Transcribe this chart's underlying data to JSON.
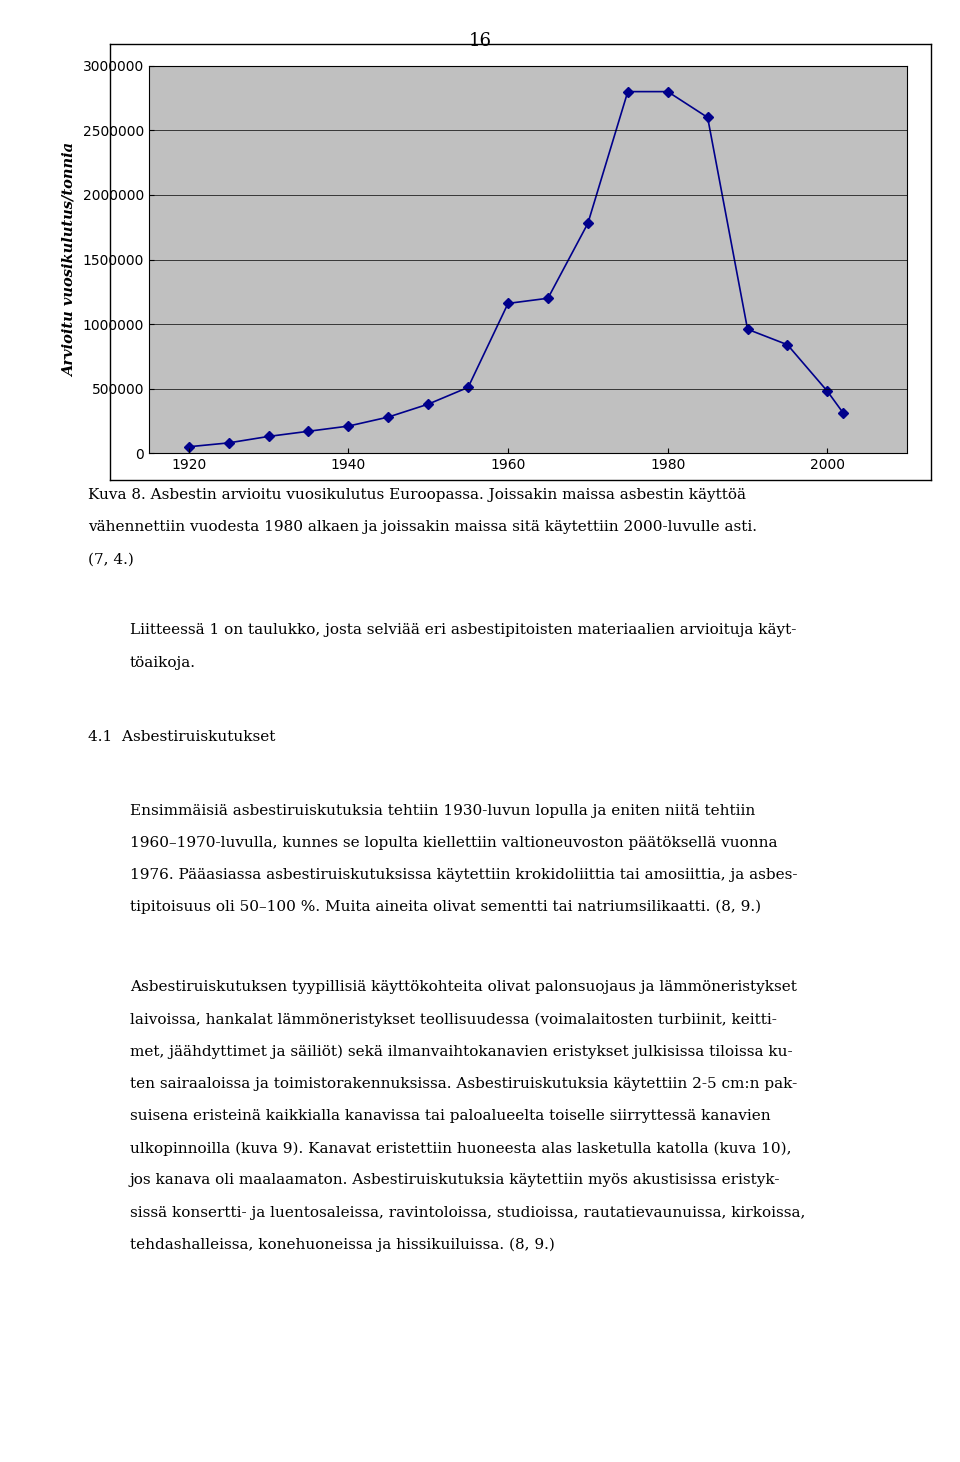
{
  "page_number": "16",
  "chart": {
    "x_data": [
      1920,
      1925,
      1930,
      1935,
      1940,
      1945,
      1950,
      1955,
      1960,
      1965,
      1970,
      1975,
      1980,
      1985,
      1990,
      1995,
      2000,
      2002
    ],
    "y_data": [
      50000,
      80000,
      130000,
      170000,
      210000,
      280000,
      380000,
      510000,
      1160000,
      1200000,
      1780000,
      2800000,
      2800000,
      2600000,
      960000,
      840000,
      480000,
      310000
    ],
    "ylabel": "Arvioitu vuosikulutus/tonnia",
    "xlim": [
      1915,
      2010
    ],
    "ylim": [
      0,
      3000000
    ],
    "yticks": [
      0,
      500000,
      1000000,
      1500000,
      2000000,
      2500000,
      3000000
    ],
    "ytick_labels": [
      "0",
      "500000",
      "1000000",
      "1500000",
      "2000000",
      "2500000",
      "3000000"
    ],
    "xticks": [
      1920,
      1940,
      1960,
      1980,
      2000
    ],
    "line_color": "#00008B",
    "marker": "D",
    "marker_size": 5,
    "bg_color": "#C0C0C0",
    "line_width": 1.2
  },
  "caption_line1": "Kuva 8. Asbestin arvioitu vuosikulutus Euroopassa. Joissakin maissa asbestin käyttöä",
  "caption_line2": "vähennettiin vuodesta 1980 alkaen ja joissakin maissa sitä käytettiin 2000-luvulle asti.",
  "caption_line3": "(7, 4.)",
  "paragraph1_line1": "Liitteessä 1 on taulukko, josta selviää eri asbestipitoisten materiaalien arvioituja käyt-",
  "paragraph1_line2": "töaikoja.",
  "section_heading": "4.1  Asbestiruiskutukset",
  "paragraph2_line1": "Ensimmäisiä asbestiruiskutuksia tehtiin 1930-luvun lopulla ja eniten niitä tehtiin",
  "paragraph2_line2": "1960–1970-luvulla, kunnes se lopulta kiellettiin valtioneuvoston päätöksellä vuonna",
  "paragraph2_line3": "1976. Pääasiassa asbestiruiskutuksissa käytettiin krokidoliittia tai amosiittia, ja asbes-",
  "paragraph2_line4": "tipitoisuus oli 50–100 %. Muita aineita olivat sementti tai natriumsilikaatti. (8, 9.)",
  "paragraph3_line1": "Asbestiruiskutuksen tyypillisiä käyttökohteita olivat palonsuojaus ja lämmöneristykset",
  "paragraph3_line2": "laivoissa, hankalat lämmöneristykset teollisuudessa (voimalaitosten turbiinit, keitti-",
  "paragraph3_line3": "met, jäähdyttimet ja säiliöt) sekä ilmanvaihtokanavien eristykset julkisissa tiloissa ku-",
  "paragraph3_line4": "ten sairaaloissa ja toimistorakennuksissa. Asbestiruiskutuksia käytettiin 2-5 cm:n pak-",
  "paragraph3_line5": "suisena eristeinä kaikkialla kanavissa tai paloalueelta toiselle siirryttessä kanavien",
  "paragraph3_line6": "ulkopinnoilla (kuva 9). Kanavat eristettiin huoneesta alas lasketulla katolla (kuva 10),",
  "paragraph3_line7": "jos kanava oli maalaamaton. Asbestiruiskutuksia käytettiin myös akustisissa eristyk-",
  "paragraph3_line8": "sissä konsertti- ja luentosaleissa, ravintoloissa, studioissa, rautatievaunuissa, kirkoissa,",
  "paragraph3_line9": "tehdashalleissa, konehuoneissa ja hissikuiluissa. (8, 9.)"
}
